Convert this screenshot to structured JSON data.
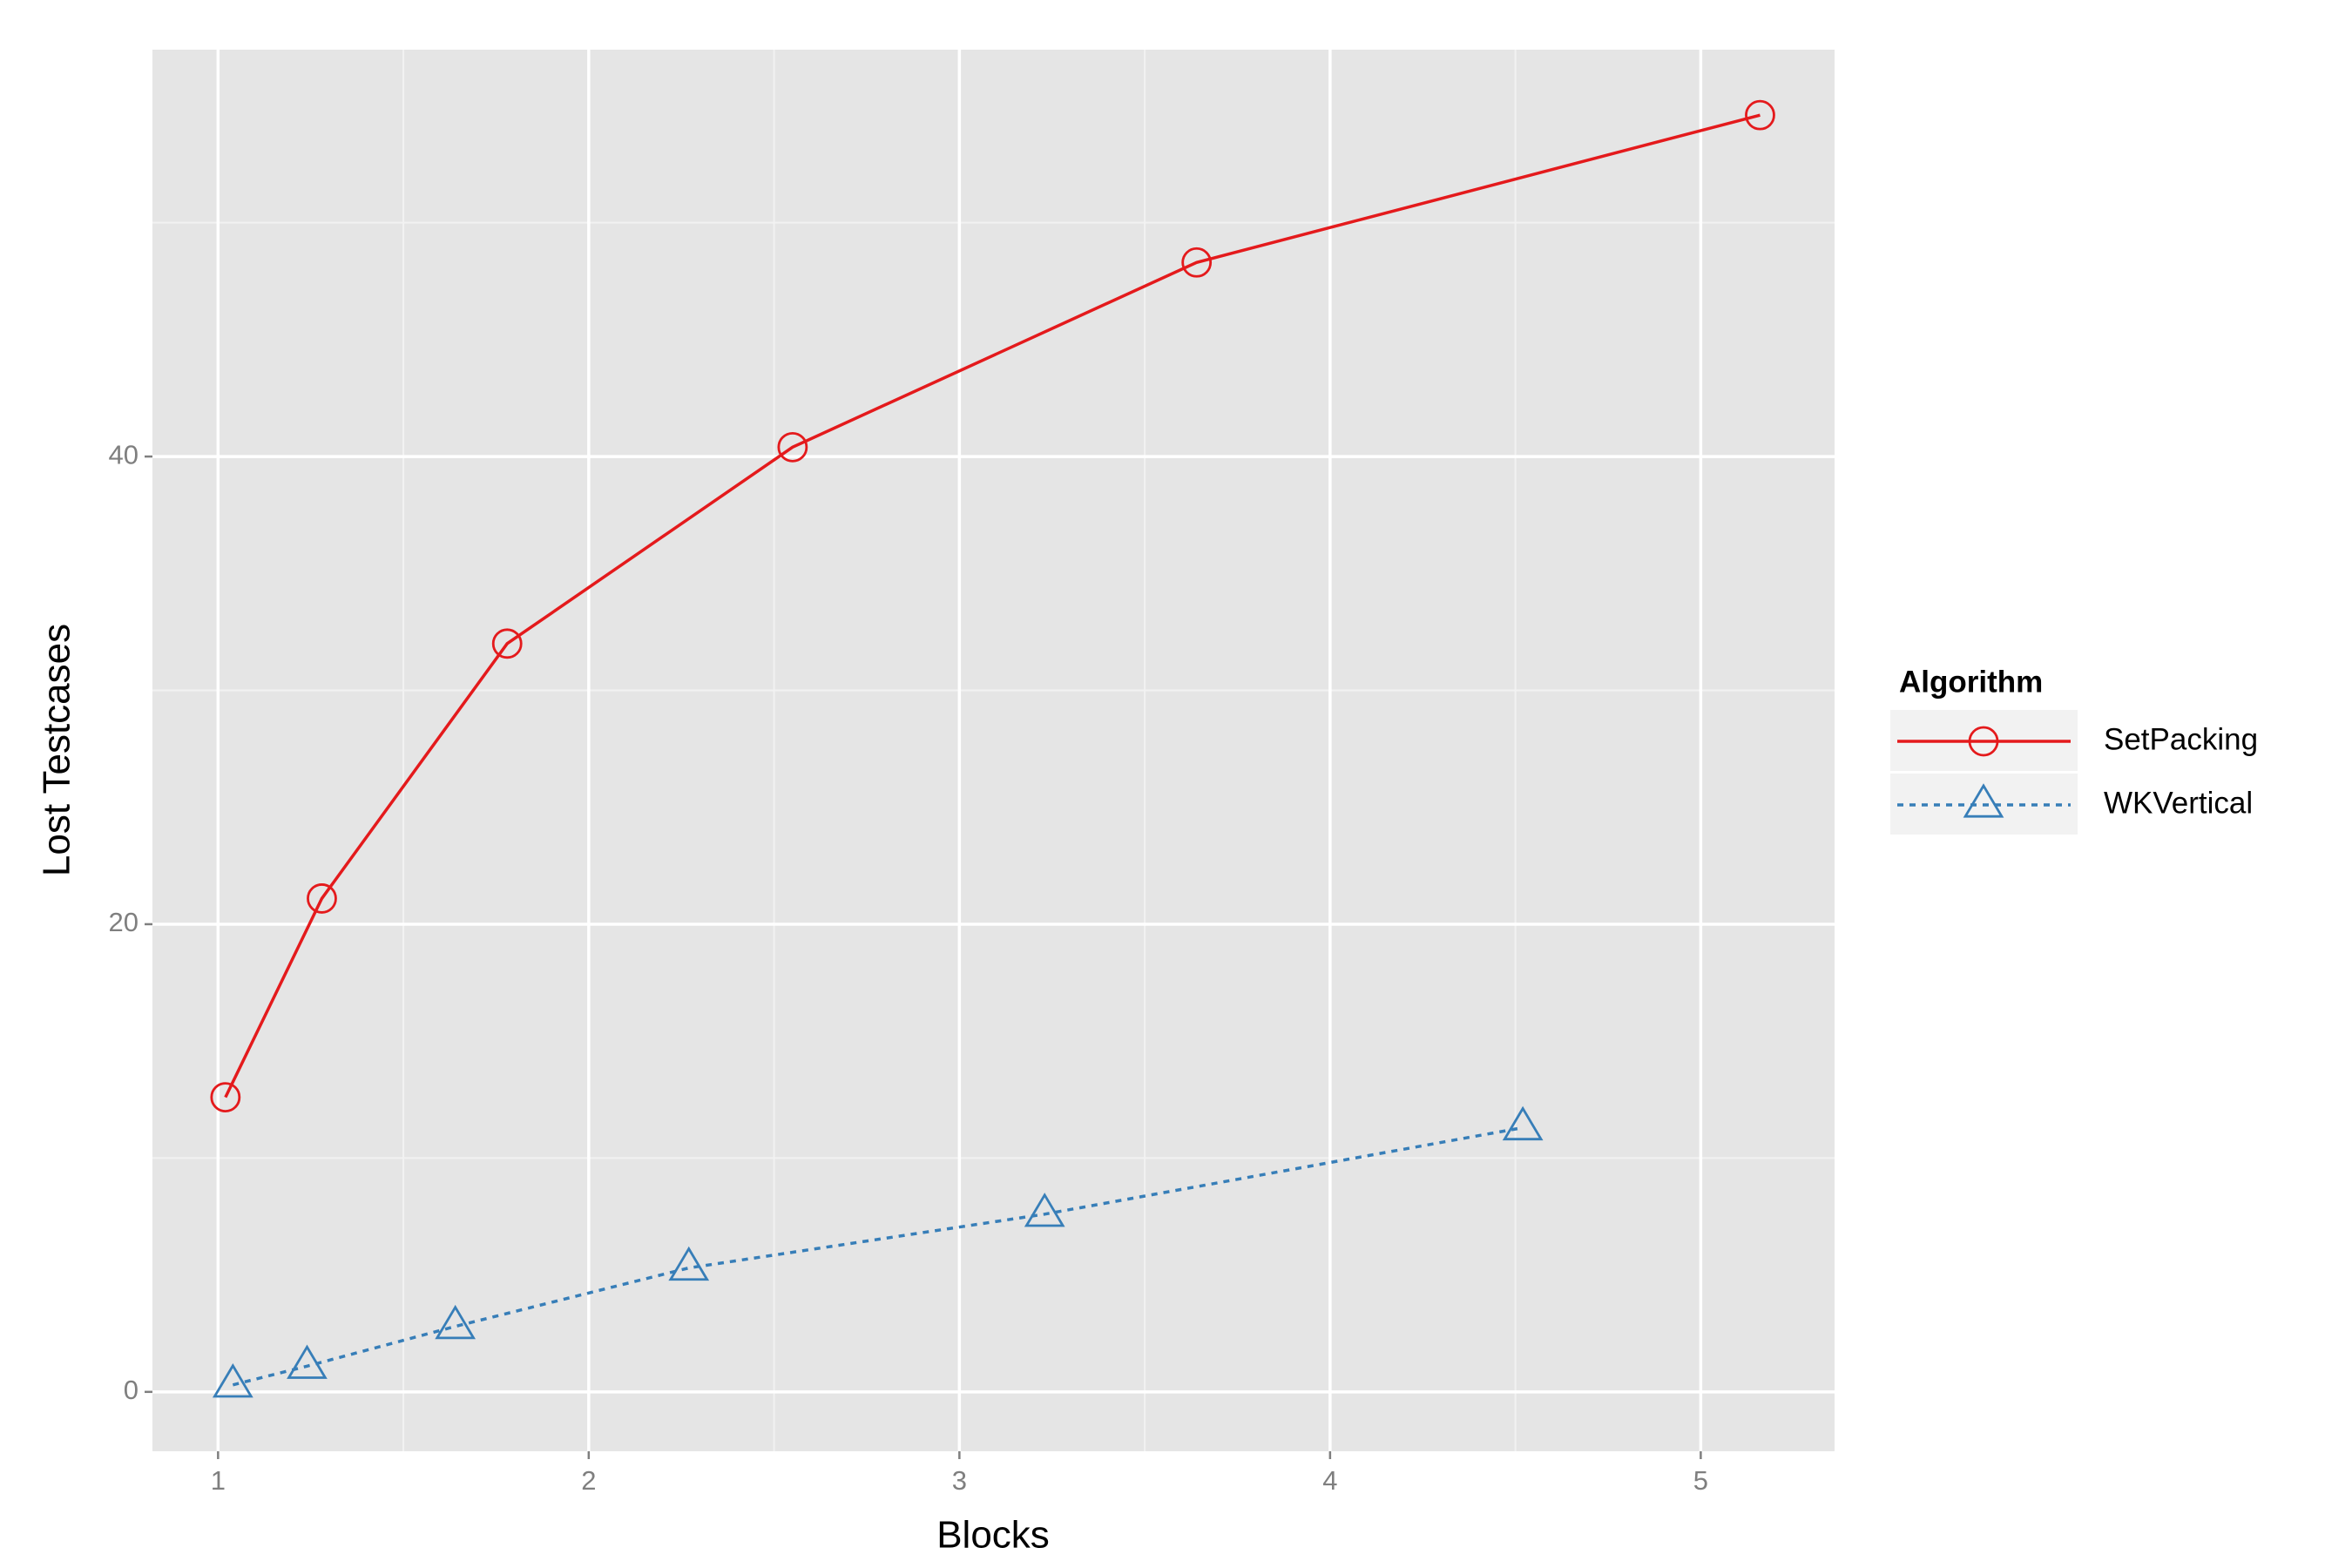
{
  "chart_data": {
    "type": "line",
    "xlabel": "Blocks",
    "ylabel": "Lost Testcases",
    "xlim": [
      0.823,
      5.361
    ],
    "ylim": [
      -2.54,
      57.4
    ],
    "xticks": [
      1,
      2,
      3,
      4,
      5
    ],
    "yticks": [
      0,
      20,
      40
    ],
    "grid": true,
    "minor_grid": true,
    "legend_title": "Algorithm",
    "legend_position": "right",
    "series": [
      {
        "name": "SetPacking",
        "color": "#e41a1c",
        "marker": "circle",
        "linestyle": "solid",
        "x": [
          1.02,
          1.28,
          1.78,
          2.55,
          3.64,
          5.16
        ],
        "values": [
          12.6,
          21.1,
          32.0,
          40.4,
          48.3,
          54.6
        ]
      },
      {
        "name": "WKVertical",
        "color": "#377eb8",
        "marker": "triangle",
        "linestyle": "dotted",
        "x": [
          1.04,
          1.24,
          1.64,
          2.27,
          3.23,
          4.52
        ],
        "values": [
          0.3,
          1.1,
          2.8,
          5.3,
          7.6,
          11.3
        ]
      }
    ]
  }
}
